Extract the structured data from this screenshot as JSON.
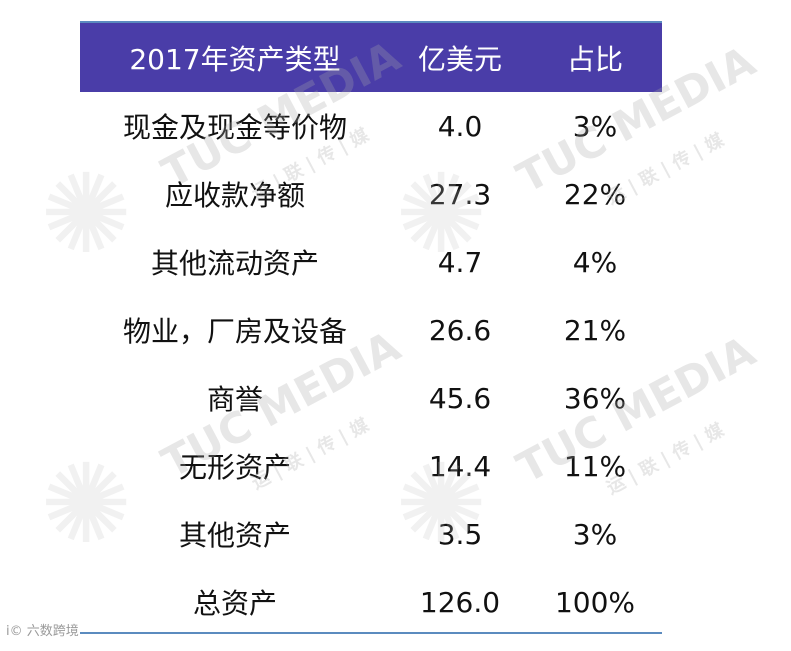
{
  "table": {
    "headers": [
      "2017年资产类型",
      "亿美元",
      "占比"
    ],
    "rows": [
      {
        "type": "现金及现金等价物",
        "amount": "4.0",
        "share": "3%"
      },
      {
        "type": "应收款净额",
        "amount": "27.3",
        "share": "22%"
      },
      {
        "type": "其他流动资产",
        "amount": "4.7",
        "share": "4%"
      },
      {
        "type": "物业，厂房及设备",
        "amount": "26.6",
        "share": "21%"
      },
      {
        "type": "商誉",
        "amount": "45.6",
        "share": "36%"
      },
      {
        "type": "无形资产",
        "amount": "14.4",
        "share": "11%"
      },
      {
        "type": "其他资产",
        "amount": "3.5",
        "share": "3%"
      },
      {
        "type": "总资产",
        "amount": "126.0",
        "share": "100%"
      }
    ]
  },
  "watermark": {
    "brand": "TUC MEDIA",
    "sub": "运 | 联 | 传 | 媒"
  },
  "source": "i© 六数跨境",
  "colors": {
    "header_bg": "#4a3da8",
    "rule": "#5b8bbf"
  }
}
